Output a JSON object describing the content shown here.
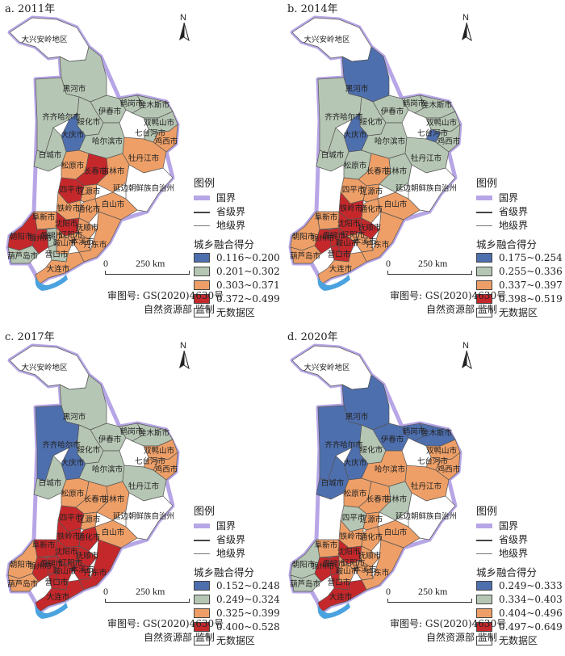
{
  "colors": {
    "c1": "#4e6fae",
    "c2": "#b6c6b4",
    "c3": "#ee9f67",
    "c4": "#c5282b",
    "nodata": "#ffffff",
    "national": "#b7a6e6",
    "sea": "#4aa3df"
  },
  "shared": {
    "north": "N",
    "legend_title": "图例",
    "line_labels": [
      "国界",
      "省级界",
      "地级界"
    ],
    "score_title": "城乡融合得分",
    "nodata_label": "无数据区",
    "scale_zero": "0",
    "scale_dist": "250 km",
    "approval": "审图号: GS(2020)4630号",
    "maker": "自然资源部 监制"
  },
  "panels": [
    {
      "title": "a. 2011年",
      "classes": [
        "0.116~0.200",
        "0.201~0.302",
        "0.303~0.371",
        "0.372~0.499"
      ],
      "region_classes": {
        "daxinganling": "nodata",
        "heihe": "c2",
        "qiqihar": "c2",
        "yichun": "c2",
        "hegang": "c2",
        "jiamusi": "c2",
        "suihua": "c2",
        "shuangyashan": "c2",
        "daqing": "c1",
        "harbin": "c2",
        "qitaihe": "c2",
        "jixi": "c3",
        "mudanjiang": "c3",
        "baicheng": "c2",
        "songyuan": "c3",
        "changchun": "c4",
        "jilin": "c3",
        "siping": "c4",
        "liaoyuan": "c3",
        "yanbian": "nodata",
        "tonghua": "c3",
        "baishan": "c3",
        "tieling": "c3",
        "fuxin": "c3",
        "shenyang": "c4",
        "fushun": "c3",
        "benxi": "c3",
        "chaoyang": "c4",
        "jinzhou": "c4",
        "huludao": "c2",
        "panjin": "c2",
        "anshan": "c3",
        "liaoyang": "c3",
        "dandong": "c3",
        "yingkou": "c2",
        "dalian": "c3"
      }
    },
    {
      "title": "b. 2014年",
      "classes": [
        "0.175~0.254",
        "0.255~0.336",
        "0.337~0.397",
        "0.398~0.519"
      ],
      "region_classes": {
        "daxinganling": "nodata",
        "heihe": "c1",
        "qiqihar": "c2",
        "yichun": "c2",
        "hegang": "c2",
        "jiamusi": "c2",
        "suihua": "c2",
        "shuangyashan": "c2",
        "daqing": "c1",
        "harbin": "c2",
        "qitaihe": "c1",
        "jixi": "c2",
        "mudanjiang": "c2",
        "baicheng": "c2",
        "songyuan": "c2",
        "changchun": "c3",
        "jilin": "c2",
        "siping": "c3",
        "liaoyuan": "c3",
        "yanbian": "nodata",
        "tonghua": "c3",
        "baishan": "c3",
        "tieling": "c4",
        "fuxin": "c3",
        "shenyang": "c4",
        "fushun": "c4",
        "benxi": "c3",
        "chaoyang": "c3",
        "jinzhou": "c4",
        "huludao": "c3",
        "panjin": "c4",
        "anshan": "c4",
        "liaoyang": "c3",
        "dandong": "c3",
        "yingkou": "c4",
        "dalian": "c3"
      }
    },
    {
      "title": "c. 2017年",
      "classes": [
        "0.152~0.248",
        "0.249~0.324",
        "0.325~0.399",
        "0.400~0.528"
      ],
      "region_classes": {
        "daxinganling": "nodata",
        "heihe": "c2",
        "qiqihar": "c1",
        "yichun": "c2",
        "hegang": "c2",
        "jiamusi": "c2",
        "suihua": "c2",
        "shuangyashan": "c3",
        "daqing": "c1",
        "harbin": "c2",
        "qitaihe": "c3",
        "jixi": "c3",
        "mudanjiang": "c2",
        "baicheng": "c2",
        "songyuan": "c3",
        "changchun": "c3",
        "jilin": "c3",
        "siping": "c4",
        "liaoyuan": "c3",
        "yanbian": "nodata",
        "tonghua": "c4",
        "baishan": "c3",
        "tieling": "c4",
        "fuxin": "c4",
        "shenyang": "c4",
        "fushun": "c4",
        "benxi": "c4",
        "chaoyang": "c3",
        "jinzhou": "c4",
        "huludao": "c3",
        "panjin": "c4",
        "anshan": "c4",
        "liaoyang": "c4",
        "dandong": "c4",
        "yingkou": "c4",
        "dalian": "c4"
      }
    },
    {
      "title": "d. 2020年",
      "classes": [
        "0.249~0.333",
        "0.334~0.403",
        "0.404~0.496",
        "0.497~0.649"
      ],
      "region_classes": {
        "daxinganling": "nodata",
        "heihe": "c1",
        "qiqihar": "c1",
        "yichun": "c1",
        "hegang": "c1",
        "jiamusi": "c1",
        "suihua": "c2",
        "shuangyashan": "c3",
        "daqing": "c1",
        "harbin": "c3",
        "qitaihe": "c3",
        "jixi": "c3",
        "mudanjiang": "c3",
        "baicheng": "c1",
        "songyuan": "c3",
        "changchun": "c3",
        "jilin": "c2",
        "siping": "c2",
        "liaoyuan": "c3",
        "yanbian": "nodata",
        "tonghua": "c3",
        "baishan": "c3",
        "tieling": "c3",
        "fuxin": "c3",
        "shenyang": "c4",
        "fushun": "c3",
        "benxi": "c3",
        "chaoyang": "c2",
        "jinzhou": "c4",
        "huludao": "c2",
        "panjin": "c4",
        "anshan": "c3",
        "liaoyang": "c3",
        "dandong": "c3",
        "yingkou": "c4",
        "dalian": "c4"
      }
    }
  ],
  "regions": [
    {
      "id": "daxinganling",
      "name": "大兴安岭地区"
    },
    {
      "id": "heihe",
      "name": "黑河市"
    },
    {
      "id": "qiqihar",
      "name": "齐齐哈尔市"
    },
    {
      "id": "yichun",
      "name": "伊春市"
    },
    {
      "id": "hegang",
      "name": "鹤岗市"
    },
    {
      "id": "jiamusi",
      "name": "佳木斯市"
    },
    {
      "id": "suihua",
      "name": "绥化市"
    },
    {
      "id": "shuangyashan",
      "name": "双鸭山市"
    },
    {
      "id": "daqing",
      "name": "大庆市"
    },
    {
      "id": "harbin",
      "name": "哈尔滨市"
    },
    {
      "id": "qitaihe",
      "name": "七台河市"
    },
    {
      "id": "jixi",
      "name": "鸡西市"
    },
    {
      "id": "mudanjiang",
      "name": "牡丹江市"
    },
    {
      "id": "baicheng",
      "name": "白城市"
    },
    {
      "id": "songyuan",
      "name": "松原市"
    },
    {
      "id": "changchun",
      "name": "长春市"
    },
    {
      "id": "jilin",
      "name": "吉林市"
    },
    {
      "id": "siping",
      "name": "四平市"
    },
    {
      "id": "liaoyuan",
      "name": "辽源市"
    },
    {
      "id": "yanbian",
      "name": "延边朝鲜族自治州"
    },
    {
      "id": "tonghua",
      "name": "通化市"
    },
    {
      "id": "baishan",
      "name": "白山市"
    },
    {
      "id": "tieling",
      "name": "铁岭市"
    },
    {
      "id": "fuxin",
      "name": "阜新市"
    },
    {
      "id": "shenyang",
      "name": "沈阳市"
    },
    {
      "id": "fushun",
      "name": "抚顺市"
    },
    {
      "id": "benxi",
      "name": "本溪市"
    },
    {
      "id": "chaoyang",
      "name": "朝阳市"
    },
    {
      "id": "jinzhou",
      "name": "锦州市"
    },
    {
      "id": "huludao",
      "name": "葫芦岛市"
    },
    {
      "id": "panjin",
      "name": "盘锦市"
    },
    {
      "id": "anshan",
      "name": "鞍山市"
    },
    {
      "id": "liaoyang",
      "name": "辽阳市"
    },
    {
      "id": "dandong",
      "name": "丹东市"
    },
    {
      "id": "yingkou",
      "name": "营口市"
    },
    {
      "id": "dalian",
      "name": "大连市"
    }
  ]
}
